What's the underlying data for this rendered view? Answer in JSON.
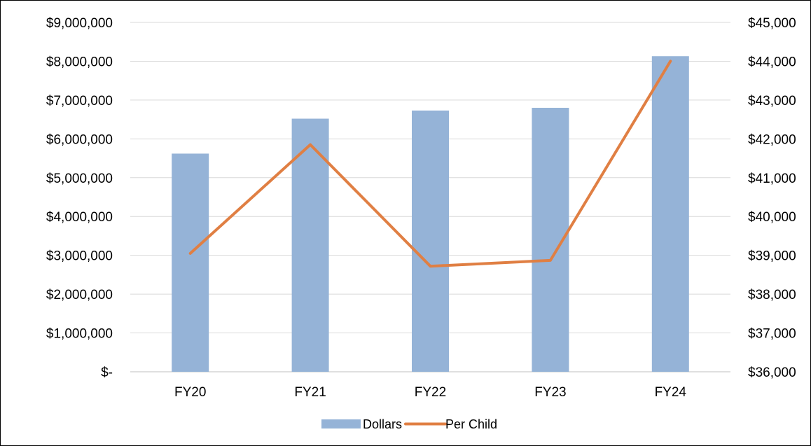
{
  "chart_data": {
    "type": "bar",
    "categories": [
      "FY20",
      "FY21",
      "FY22",
      "FY23",
      "FY24"
    ],
    "series": [
      {
        "name": "Dollars",
        "type": "bar",
        "axis": "left",
        "values": [
          5620000,
          6520000,
          6730000,
          6800000,
          8130000
        ],
        "color": "#95b3d7"
      },
      {
        "name": "Per Child",
        "type": "line",
        "axis": "right",
        "values": [
          39050,
          41850,
          38720,
          38870,
          44000
        ],
        "color": "#e07f43"
      }
    ],
    "ylim_left": [
      0,
      9000000
    ],
    "ylim_right": [
      36000,
      45000
    ],
    "yticks_left": [
      "$-",
      "$1,000,000",
      "$2,000,000",
      "$3,000,000",
      "$4,000,000",
      "$5,000,000",
      "$6,000,000",
      "$7,000,000",
      "$8,000,000",
      "$9,000,000"
    ],
    "yticks_right": [
      "$36,000",
      "$37,000",
      "$38,000",
      "$39,000",
      "$40,000",
      "$41,000",
      "$42,000",
      "$43,000",
      "$44,000",
      "$45,000"
    ],
    "grid": true,
    "legend": "bottom-center",
    "title": "",
    "xlabel": "",
    "ylabel": ""
  }
}
